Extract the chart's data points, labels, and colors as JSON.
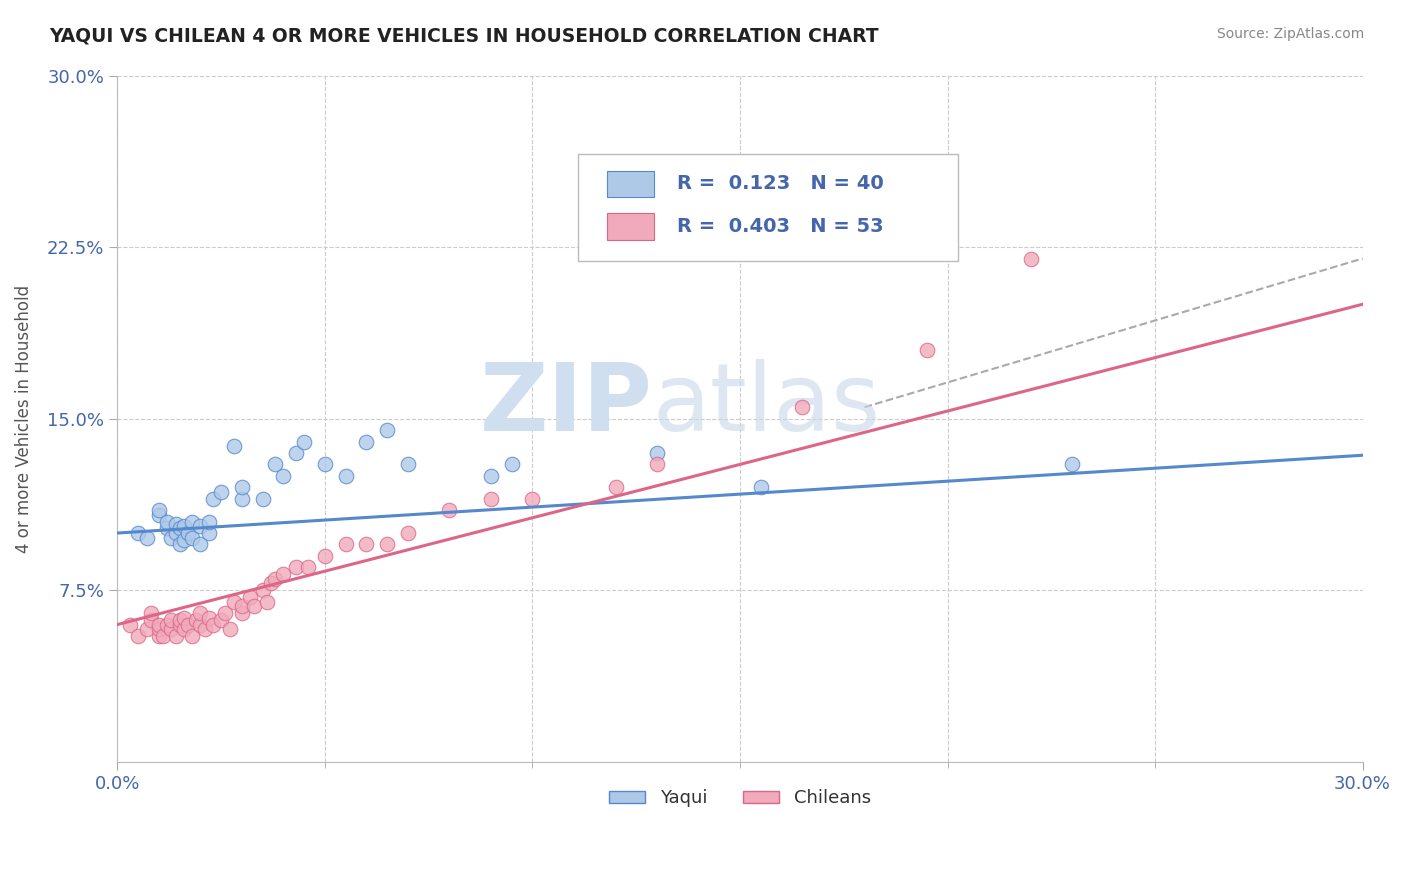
{
  "title": "YAQUI VS CHILEAN 4 OR MORE VEHICLES IN HOUSEHOLD CORRELATION CHART",
  "source_text": "Source: ZipAtlas.com",
  "ylabel": "4 or more Vehicles in Household",
  "xlim": [
    0.0,
    0.3
  ],
  "ylim": [
    0.0,
    0.3
  ],
  "yaqui_R": 0.123,
  "yaqui_N": 40,
  "chilean_R": 0.403,
  "chilean_N": 53,
  "yaqui_color": "#aec8e8",
  "chilean_color": "#f0aabb",
  "yaqui_line_color": "#5588cc",
  "chilean_line_color": "#dd6688",
  "background_color": "#ffffff",
  "grid_color": "#cccccc",
  "title_color": "#222222",
  "tick_label_color": "#4466aa",
  "watermark_color": "#d0dff0",
  "yaqui_scatter_x": [
    0.005,
    0.007,
    0.01,
    0.01,
    0.012,
    0.012,
    0.013,
    0.014,
    0.014,
    0.015,
    0.015,
    0.016,
    0.016,
    0.017,
    0.018,
    0.018,
    0.02,
    0.02,
    0.022,
    0.022,
    0.023,
    0.025,
    0.028,
    0.03,
    0.03,
    0.035,
    0.038,
    0.04,
    0.043,
    0.045,
    0.05,
    0.055,
    0.06,
    0.065,
    0.07,
    0.09,
    0.095,
    0.13,
    0.155,
    0.23
  ],
  "yaqui_scatter_y": [
    0.1,
    0.098,
    0.108,
    0.11,
    0.102,
    0.105,
    0.098,
    0.1,
    0.104,
    0.095,
    0.102,
    0.097,
    0.103,
    0.1,
    0.098,
    0.105,
    0.095,
    0.103,
    0.1,
    0.105,
    0.115,
    0.118,
    0.138,
    0.115,
    0.12,
    0.115,
    0.13,
    0.125,
    0.135,
    0.14,
    0.13,
    0.125,
    0.14,
    0.145,
    0.13,
    0.125,
    0.13,
    0.135,
    0.12,
    0.13
  ],
  "chilean_scatter_x": [
    0.003,
    0.005,
    0.007,
    0.008,
    0.008,
    0.01,
    0.01,
    0.01,
    0.011,
    0.012,
    0.013,
    0.013,
    0.014,
    0.015,
    0.015,
    0.016,
    0.016,
    0.017,
    0.018,
    0.019,
    0.02,
    0.02,
    0.021,
    0.022,
    0.023,
    0.025,
    0.026,
    0.027,
    0.028,
    0.03,
    0.03,
    0.032,
    0.033,
    0.035,
    0.036,
    0.037,
    0.038,
    0.04,
    0.043,
    0.046,
    0.05,
    0.055,
    0.06,
    0.065,
    0.07,
    0.08,
    0.09,
    0.1,
    0.12,
    0.13,
    0.165,
    0.195,
    0.22
  ],
  "chilean_scatter_y": [
    0.06,
    0.055,
    0.058,
    0.062,
    0.065,
    0.055,
    0.058,
    0.06,
    0.055,
    0.06,
    0.058,
    0.062,
    0.055,
    0.06,
    0.062,
    0.058,
    0.063,
    0.06,
    0.055,
    0.062,
    0.06,
    0.065,
    0.058,
    0.063,
    0.06,
    0.062,
    0.065,
    0.058,
    0.07,
    0.065,
    0.068,
    0.072,
    0.068,
    0.075,
    0.07,
    0.078,
    0.08,
    0.082,
    0.085,
    0.085,
    0.09,
    0.095,
    0.095,
    0.095,
    0.1,
    0.11,
    0.115,
    0.115,
    0.12,
    0.13,
    0.155,
    0.18,
    0.22
  ],
  "yaqui_trend_start_y": 0.1,
  "yaqui_trend_end_y": 0.134,
  "chilean_trend_start_y": 0.06,
  "chilean_trend_end_y": 0.2,
  "dashed_line_x": [
    0.18,
    0.3
  ],
  "dashed_line_y": [
    0.155,
    0.22
  ]
}
